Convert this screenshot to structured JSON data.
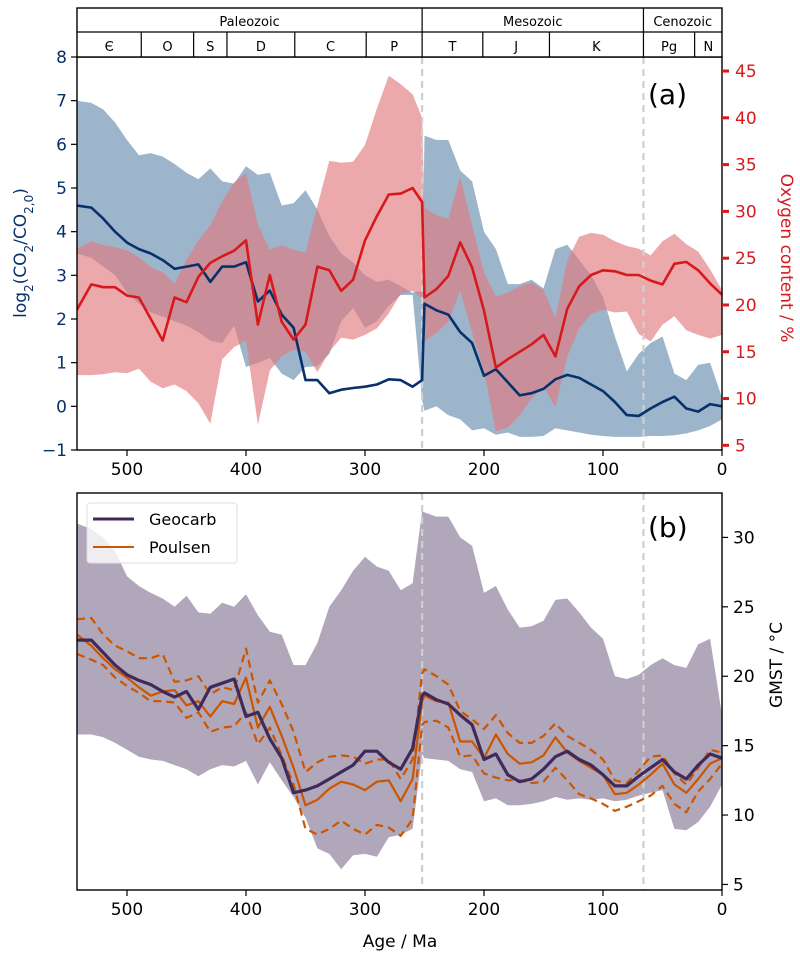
{
  "chart_data": [
    {
      "panel": "a",
      "type": "line",
      "panel_label": "(a)",
      "xlabel": "",
      "x_ticks": [
        500,
        400,
        300,
        200,
        100,
        0
      ],
      "xlim": [
        542,
        0
      ],
      "ylabel_left": "log₂(CO₂/CO₂,₀)",
      "ylabel_left_parts": {
        "pre": "log",
        "sub1": "2",
        "mid": "(CO",
        "sub2": "2",
        "mid2": "/CO",
        "sub3": "2,0",
        "post": ")"
      },
      "ylim_left": [
        -1,
        8
      ],
      "y_ticks_left": [
        -1,
        0,
        1,
        2,
        3,
        4,
        5,
        6,
        7,
        8
      ],
      "y_tick_labels_left": [
        "−1",
        "0",
        "1",
        "2",
        "3",
        "4",
        "5",
        "6",
        "7",
        "8"
      ],
      "ylabel_right": "Oxygen content / %",
      "ylim_right": [
        4.5,
        46.5
      ],
      "y_ticks_right": [
        5,
        10,
        15,
        20,
        25,
        30,
        35,
        40,
        45
      ],
      "vlines": [
        252,
        66
      ],
      "geologic_eras": [
        {
          "name": "Paleozoic",
          "start": 542,
          "end": 252
        },
        {
          "name": "Mesozoic",
          "start": 252,
          "end": 66
        },
        {
          "name": "Cenozoic",
          "start": 66,
          "end": 0
        }
      ],
      "geologic_periods": [
        {
          "name": "Є",
          "start": 542,
          "end": 488
        },
        {
          "name": "O",
          "start": 488,
          "end": 444
        },
        {
          "name": "S",
          "start": 444,
          "end": 416
        },
        {
          "name": "D",
          "start": 416,
          "end": 359
        },
        {
          "name": "C",
          "start": 359,
          "end": 299
        },
        {
          "name": "P",
          "start": 299,
          "end": 252
        },
        {
          "name": "T",
          "start": 252,
          "end": 201
        },
        {
          "name": "J",
          "start": 201,
          "end": 145
        },
        {
          "name": "K",
          "start": 145,
          "end": 66
        },
        {
          "name": "Pg",
          "start": 66,
          "end": 23
        },
        {
          "name": "N",
          "start": 23,
          "end": 0
        }
      ],
      "x": [
        542,
        530,
        520,
        510,
        500,
        490,
        480,
        470,
        460,
        450,
        440,
        430,
        420,
        410,
        400,
        390,
        380,
        370,
        360,
        350,
        340,
        330,
        320,
        310,
        300,
        290,
        280,
        270,
        260,
        252,
        250,
        240,
        230,
        220,
        210,
        200,
        190,
        180,
        170,
        160,
        150,
        140,
        130,
        120,
        110,
        100,
        90,
        80,
        70,
        60,
        50,
        40,
        30,
        20,
        10,
        0
      ],
      "series": [
        {
          "name": "CO2",
          "axis": "left",
          "color": "#08306b",
          "band_color": "#4a78a0",
          "values": [
            4.6,
            4.55,
            4.3,
            4.0,
            3.75,
            3.6,
            3.5,
            3.35,
            3.15,
            3.2,
            3.25,
            2.85,
            3.2,
            3.2,
            3.3,
            2.4,
            2.65,
            2.1,
            1.8,
            0.6,
            0.6,
            0.3,
            0.38,
            0.42,
            0.45,
            0.5,
            0.62,
            0.6,
            0.45,
            0.6,
            2.35,
            2.2,
            2.1,
            1.7,
            1.45,
            0.7,
            0.85,
            0.55,
            0.25,
            0.3,
            0.4,
            0.62,
            0.72,
            0.65,
            0.5,
            0.35,
            0.1,
            -0.2,
            -0.22,
            -0.05,
            0.1,
            0.22,
            -0.05,
            -0.12,
            0.05,
            0.0
          ],
          "upper": [
            7.0,
            6.95,
            6.8,
            6.5,
            6.1,
            5.75,
            5.8,
            5.72,
            5.55,
            5.35,
            5.2,
            5.45,
            5.15,
            5.1,
            5.5,
            5.3,
            5.35,
            4.6,
            4.65,
            4.95,
            4.5,
            3.9,
            3.5,
            3.3,
            3.0,
            2.85,
            2.9,
            2.75,
            2.6,
            2.65,
            6.2,
            6.1,
            6.1,
            5.4,
            5.15,
            4.0,
            3.6,
            2.8,
            2.8,
            2.9,
            2.7,
            3.6,
            3.7,
            3.35,
            3.0,
            2.5,
            1.6,
            0.8,
            1.2,
            1.45,
            1.6,
            0.75,
            0.6,
            0.95,
            1.0,
            0.2
          ],
          "lower": [
            3.5,
            3.4,
            3.2,
            3.0,
            2.6,
            2.35,
            2.15,
            2.05,
            1.95,
            1.85,
            1.7,
            1.5,
            1.45,
            1.85,
            0.9,
            1.0,
            1.1,
            0.75,
            0.6,
            0.9,
            0.92,
            1.2,
            1.95,
            2.25,
            1.8,
            1.95,
            2.3,
            2.55,
            2.55,
            0.15,
            -0.1,
            0.0,
            -0.2,
            -0.3,
            -0.55,
            -0.5,
            -0.65,
            -0.6,
            -0.7,
            -0.7,
            -0.68,
            -0.5,
            -0.55,
            -0.6,
            -0.65,
            -0.68,
            -0.7,
            -0.7,
            -0.7,
            -0.68,
            -0.68,
            -0.66,
            -0.62,
            -0.55,
            -0.45,
            -0.3
          ]
        },
        {
          "name": "O2",
          "axis": "right",
          "color": "#d7191c",
          "band_color": "#e07b80",
          "values": [
            19.5,
            22.2,
            21.9,
            21.9,
            21.0,
            20.8,
            18.5,
            16.2,
            20.8,
            20.3,
            23.0,
            24.5,
            25.2,
            25.8,
            26.9,
            17.9,
            23.2,
            18.2,
            16.3,
            17.9,
            24.1,
            23.7,
            21.5,
            22.7,
            26.9,
            29.5,
            31.8,
            31.9,
            32.5,
            31.0,
            20.8,
            21.7,
            23.1,
            26.7,
            24.0,
            19.4,
            13.3,
            14.2,
            15.0,
            15.8,
            16.8,
            14.5,
            19.6,
            22.0,
            23.2,
            23.7,
            23.6,
            23.2,
            23.2,
            22.6,
            22.2,
            24.4,
            24.6,
            23.7,
            22.3,
            21.1
          ],
          "upper": [
            26.0,
            26.8,
            26.4,
            26.2,
            25.8,
            25.1,
            24.0,
            23.5,
            22.3,
            24.8,
            26.9,
            28.5,
            31.1,
            33.1,
            34.1,
            28.6,
            25.9,
            26.4,
            25.9,
            25.6,
            30.6,
            35.4,
            35.2,
            35.3,
            37.1,
            41.0,
            44.5,
            43.6,
            42.5,
            40.0,
            30.4,
            29.6,
            29.2,
            33.7,
            28.5,
            23.5,
            20.9,
            21.3,
            22.0,
            22.4,
            21.6,
            18.6,
            24.8,
            27.3,
            27.7,
            27.5,
            26.8,
            26.3,
            26.0,
            25.3,
            26.8,
            27.6,
            26.5,
            25.7,
            23.8,
            21.6
          ],
          "lower": [
            12.5,
            12.5,
            12.6,
            12.8,
            12.7,
            13.2,
            11.8,
            11.1,
            11.5,
            10.8,
            9.5,
            7.3,
            14.2,
            15.5,
            16.2,
            7.2,
            13.0,
            14.5,
            15.2,
            15.0,
            12.8,
            15.0,
            16.5,
            16.3,
            16.8,
            17.5,
            19.1,
            21.2,
            21.5,
            20.7,
            16.1,
            17.0,
            18.2,
            21.5,
            17.0,
            13.0,
            6.5,
            6.9,
            8.2,
            10.0,
            11.3,
            9.1,
            14.5,
            17.5,
            19.0,
            19.5,
            19.2,
            19.3,
            16.9,
            16.1,
            17.9,
            18.8,
            17.3,
            16.8,
            16.4,
            16.8
          ]
        }
      ]
    },
    {
      "panel": "b",
      "type": "line",
      "panel_label": "(b)",
      "xlabel": "Age / Ma",
      "x_ticks": [
        500,
        400,
        300,
        200,
        100,
        0
      ],
      "xlim": [
        542,
        0
      ],
      "ylabel": "GMST / °C",
      "ylim": [
        4.6,
        33.2
      ],
      "y_ticks": [
        5,
        10,
        15,
        20,
        25,
        30
      ],
      "vlines": [
        252,
        66
      ],
      "legend": {
        "position": "top-left",
        "entries": [
          "Geocarb",
          "Poulsen"
        ]
      },
      "x": [
        542,
        530,
        520,
        510,
        500,
        490,
        480,
        470,
        460,
        450,
        440,
        430,
        420,
        410,
        400,
        390,
        380,
        370,
        360,
        350,
        340,
        330,
        320,
        310,
        300,
        290,
        280,
        270,
        260,
        252,
        250,
        240,
        230,
        220,
        210,
        200,
        190,
        180,
        170,
        160,
        150,
        140,
        130,
        120,
        110,
        100,
        90,
        80,
        70,
        60,
        50,
        40,
        30,
        20,
        10,
        0
      ],
      "series": [
        {
          "name": "Geocarb",
          "color": "#3f2a5c",
          "band_color": "#b1a7ba",
          "values": [
            22.6,
            22.6,
            21.7,
            20.8,
            20.1,
            19.7,
            19.4,
            18.9,
            18.5,
            18.9,
            17.6,
            19.2,
            19.5,
            19.8,
            17.1,
            17.4,
            15.5,
            14.1,
            11.6,
            11.8,
            12.1,
            12.6,
            13.1,
            13.6,
            14.6,
            14.6,
            13.8,
            13.3,
            14.8,
            18.6,
            18.8,
            18.3,
            18.0,
            17.2,
            16.5,
            14.0,
            14.4,
            12.9,
            12.4,
            12.6,
            13.3,
            14.2,
            14.6,
            14.0,
            13.6,
            12.9,
            12.1,
            12.1,
            12.8,
            13.4,
            14.0,
            13.1,
            12.6,
            13.6,
            14.4,
            14.1
          ],
          "upper": [
            31.0,
            30.6,
            30.0,
            29.0,
            27.2,
            26.5,
            26.0,
            25.6,
            25.0,
            25.8,
            24.6,
            24.5,
            25.3,
            25.0,
            25.9,
            24.4,
            23.2,
            23.0,
            20.8,
            20.8,
            22.4,
            25.0,
            26.2,
            27.6,
            28.6,
            27.9,
            27.6,
            26.2,
            26.7,
            31.9,
            31.8,
            31.5,
            31.5,
            30.0,
            29.4,
            26.0,
            26.5,
            24.8,
            23.5,
            23.6,
            24.0,
            25.5,
            25.6,
            24.6,
            23.5,
            22.7,
            20.0,
            19.8,
            20.1,
            20.8,
            21.3,
            20.8,
            20.6,
            22.3,
            22.7,
            17.2
          ],
          "upper_note": "shaded range",
          "lower": [
            15.8,
            15.8,
            15.6,
            15.2,
            14.7,
            14.2,
            14.0,
            13.9,
            13.6,
            13.3,
            12.8,
            13.3,
            13.6,
            13.5,
            13.9,
            12.2,
            13.8,
            12.5,
            11.3,
            9.8,
            7.6,
            7.2,
            6.1,
            7.1,
            7.2,
            7.0,
            8.4,
            8.6,
            9.0,
            14.4,
            14.1,
            14.0,
            13.9,
            13.3,
            13.1,
            11.0,
            11.2,
            10.7,
            10.7,
            10.8,
            11.0,
            11.3,
            11.1,
            11.2,
            11.1,
            11.2,
            11.0,
            11.1,
            11.4,
            11.6,
            11.8,
            9.0,
            8.9,
            9.5,
            10.6,
            12.2
          ]
        },
        {
          "name": "Poulsen",
          "color": "#cc5500",
          "values": [
            23.0,
            22.2,
            21.3,
            20.5,
            19.9,
            19.2,
            18.6,
            18.9,
            19.0,
            17.9,
            18.2,
            17.1,
            18.2,
            18.0,
            19.9,
            16.3,
            17.8,
            15.7,
            13.4,
            10.7,
            11.1,
            11.9,
            12.4,
            12.2,
            11.8,
            12.4,
            12.5,
            11.0,
            12.6,
            18.2,
            18.6,
            18.2,
            18.1,
            15.3,
            15.3,
            14.1,
            15.8,
            14.4,
            13.7,
            13.8,
            14.3,
            15.6,
            14.5,
            13.9,
            13.4,
            12.9,
            11.5,
            11.6,
            12.2,
            12.9,
            13.7,
            12.2,
            11.6,
            12.6,
            13.7,
            14.1
          ],
          "upper": [
            24.1,
            24.2,
            23.0,
            22.2,
            21.8,
            21.3,
            21.3,
            21.6,
            19.6,
            19.7,
            20.0,
            18.7,
            19.2,
            19.0,
            22.0,
            18.1,
            19.7,
            18.0,
            16.0,
            13.1,
            13.8,
            14.2,
            14.3,
            14.2,
            13.7,
            14.0,
            14.0,
            12.6,
            14.0,
            20.2,
            20.5,
            20.0,
            19.4,
            17.5,
            16.9,
            16.2,
            17.2,
            15.9,
            15.2,
            15.2,
            15.7,
            16.6,
            15.7,
            15.2,
            14.7,
            14.0,
            12.5,
            12.3,
            13.2,
            14.2,
            14.3,
            13.0,
            12.2,
            13.4,
            14.7,
            14.5
          ],
          "lower": [
            21.6,
            21.2,
            20.8,
            19.9,
            19.3,
            18.8,
            18.2,
            18.2,
            18.1,
            17.0,
            17.4,
            16.0,
            16.3,
            16.4,
            17.4,
            15.1,
            16.3,
            14.3,
            12.2,
            9.0,
            8.6,
            9.0,
            9.6,
            9.0,
            8.6,
            9.3,
            9.1,
            8.5,
            9.7,
            16.5,
            16.7,
            16.8,
            16.3,
            14.2,
            14.3,
            13.0,
            12.7,
            12.5,
            12.5,
            12.3,
            12.4,
            13.4,
            12.5,
            11.5,
            11.2,
            10.8,
            10.3,
            10.6,
            11.0,
            11.4,
            12.1,
            10.8,
            10.2,
            11.7,
            12.6,
            13.7
          ]
        }
      ]
    }
  ]
}
